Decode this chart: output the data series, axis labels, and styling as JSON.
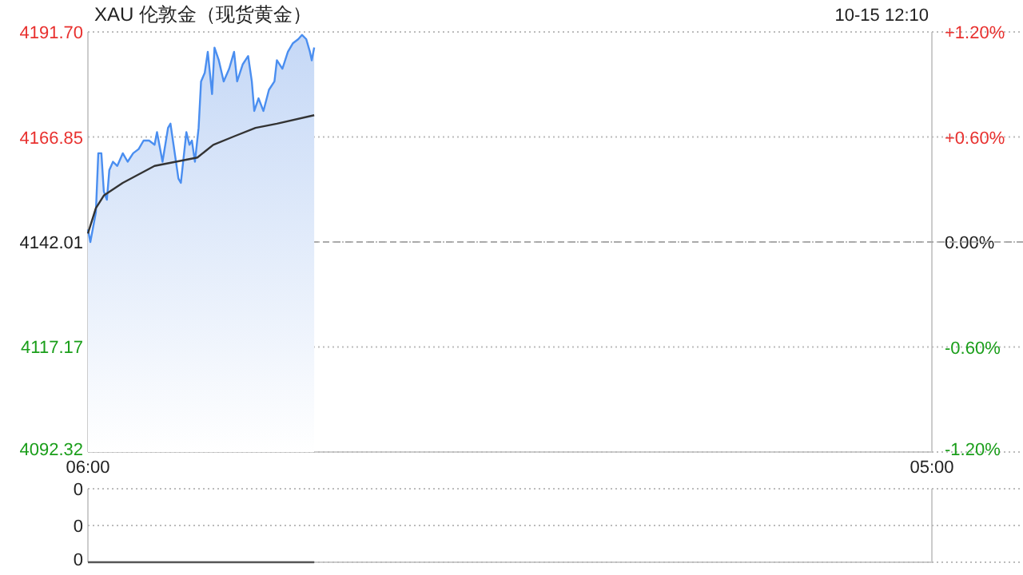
{
  "chart_data": [
    {
      "type": "area",
      "title": "XAU 伦敦金（现货黄金）",
      "annotations": [
        "10-15 12:10"
      ],
      "xlim": [
        "--10-15T06:00",
        "--10-16T05:00"
      ],
      "xticks": [
        {
          "value": "--10-15T06:00",
          "label": "06:00"
        },
        {
          "value": "--10-16T05:00",
          "label": "05:00"
        }
      ],
      "ylim": [
        4092.32,
        4191.7
      ],
      "yticks": [
        4092.32,
        4117.17,
        4142.01,
        4166.85,
        {
          "value": 4191.7,
          "label": "4191.70"
        }
      ],
      "y2lim": [
        -1.2,
        1.2
      ],
      "y2ticks": [
        {
          "value": -1.2,
          "label": "-1.20%"
        },
        {
          "value": -0.6,
          "label": "-0.60%"
        },
        {
          "value": 0,
          "label": "0.00%"
        },
        {
          "value": 0.6,
          "label": "+0.60%"
        },
        {
          "value": 1.2,
          "label": "+1.20%"
        }
      ],
      "grid": "y",
      "ref_lines": [
        {
          "axis": "y",
          "value": 4142.01,
          "line_style": "dashed",
          "color": "#aaaaaa"
        }
      ],
      "series": [
        {
          "color": "#4a8ef0",
          "x": [
            "--10-15T06:00",
            "--10-15T06:04",
            "--10-15T06:13",
            "--10-15T06:17",
            "--10-15T06:22",
            "--10-15T06:26",
            "--10-15T06:31",
            "--10-15T06:35",
            "--10-15T06:41",
            "--10-15T06:48",
            "--10-15T06:57",
            "--10-15T07:05",
            "--10-15T07:14",
            "--10-15T07:23",
            "--10-15T07:31",
            "--10-15T07:40",
            "--10-15T07:49",
            "--10-15T07:53",
            "--10-15T08:02",
            "--10-15T08:11",
            "--10-15T08:15",
            "--10-15T08:19",
            "--10-15T08:28",
            "--10-15T08:32",
            "--10-15T08:41",
            "--10-15T08:46",
            "--10-15T08:50",
            "--10-15T08:55",
            "--10-15T09:01",
            "--10-15T09:05",
            "--10-15T09:11",
            "--10-15T09:16",
            "--10-15T09:23",
            "--10-15T09:27",
            "--10-15T09:34",
            "--10-15T09:42",
            "--10-15T09:51",
            "--10-15T09:59",
            "--10-15T10:04",
            "--10-15T10:13",
            "--10-15T10:22",
            "--10-15T10:28",
            "--10-15T10:32",
            "--10-15T10:39",
            "--10-15T10:47",
            "--10-15T10:56",
            "--10-15T11:05",
            "--10-15T11:09",
            "--10-15T11:18",
            "--10-15T11:27",
            "--10-15T11:35",
            "--10-15T11:44",
            "--10-15T11:50",
            "--10-15T11:57",
            "--10-15T12:03",
            "--10-15T12:06",
            "--10-15T12:10"
          ],
          "values": [
            4145,
            4142,
            4149,
            4163,
            4163,
            4154,
            4152,
            4159,
            4161,
            4160,
            4163,
            4161,
            4163,
            4164,
            4166,
            4166,
            4165,
            4168,
            4161,
            4169,
            4170,
            4166,
            4157,
            4156,
            4168,
            4165,
            4166,
            4161,
            4169,
            4180,
            4182,
            4187,
            4177,
            4188,
            4185,
            4180,
            4183,
            4187,
            4180,
            4184,
            4186,
            4180,
            4173,
            4176,
            4173,
            4178,
            4180,
            4185,
            4183,
            4187,
            4189,
            4190,
            4191,
            4190,
            4187,
            4185,
            4188
          ]
        },
        {
          "type": "line",
          "color": "#333333",
          "x": [
            "--10-15T06:00",
            "--10-15T06:13",
            "--10-15T06:26",
            "--10-15T06:57",
            "--10-15T07:49",
            "--10-15T08:24",
            "--10-15T08:59",
            "--10-15T09:25",
            "--10-15T09:59",
            "--10-15T10:34",
            "--10-15T11:09",
            "--10-15T12:10"
          ],
          "values": [
            4144,
            4150,
            4153,
            4156,
            4160,
            4161,
            4162,
            4165,
            4167,
            4169,
            4170,
            4172
          ]
        }
      ]
    },
    {
      "type": "line",
      "tick_labels": "y",
      "xlim": [
        "--10-15T06:00",
        "--10-16T05:00"
      ],
      "ylim": [
        0,
        0.003
      ],
      "yticks": [
        {
          "value": 0,
          "label": "0"
        },
        {
          "value": 0.0015,
          "label": "0"
        },
        {
          "value": 0.003,
          "label": "0"
        }
      ],
      "grid": "y",
      "series": [
        {
          "color": "#555555",
          "x": [
            "--10-15T06:00",
            "--10-15T12:10"
          ],
          "values": [
            0,
            0
          ]
        }
      ]
    }
  ]
}
